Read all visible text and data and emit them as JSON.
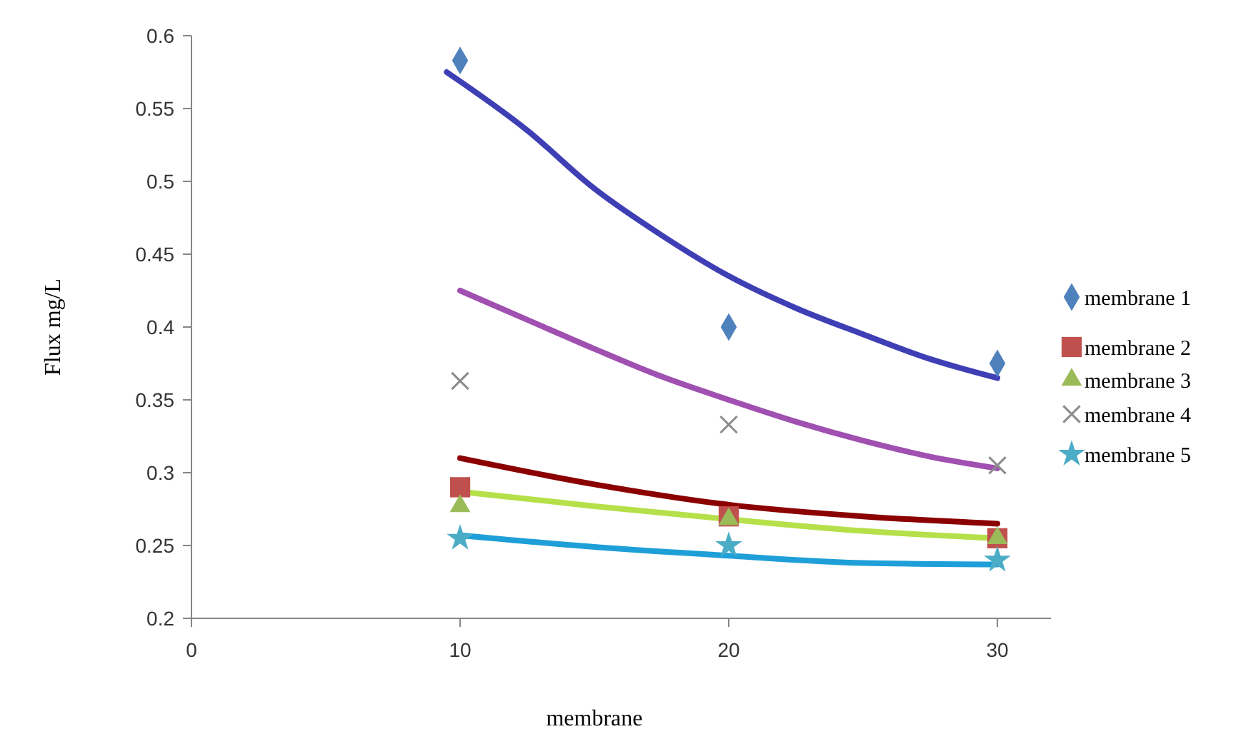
{
  "chart_data": {
    "type": "scatter",
    "xlabel": "membrane",
    "ylabel": "Flux mg/L",
    "xlim": [
      0,
      32
    ],
    "ylim": [
      0.2,
      0.6
    ],
    "xticks": [
      0,
      10,
      20,
      30
    ],
    "yticks": [
      0.2,
      0.25,
      0.3,
      0.35,
      0.4,
      0.45,
      0.5,
      0.55,
      0.6
    ],
    "grid": false,
    "legend": "right",
    "x": [
      10,
      20,
      30
    ],
    "series": [
      {
        "type": "line",
        "color": "#3f3fb5",
        "marker": "none",
        "x": [
          9.5,
          12.5,
          15,
          17.5,
          20,
          22.5,
          25,
          27.5,
          30
        ],
        "values": [
          0.575,
          0.535,
          0.495,
          0.463,
          0.435,
          0.413,
          0.395,
          0.378,
          0.365
        ]
      },
      {
        "type": "line",
        "color": "#a050b0",
        "marker": "none",
        "x": [
          10,
          12.5,
          15,
          17.5,
          20,
          22.5,
          25,
          27.5,
          30
        ],
        "values": [
          0.425,
          0.405,
          0.385,
          0.366,
          0.35,
          0.335,
          0.322,
          0.311,
          0.303
        ]
      },
      {
        "type": "line",
        "color": "#8b0000",
        "marker": "none",
        "x": [
          10,
          15,
          20,
          25,
          30
        ],
        "values": [
          0.31,
          0.292,
          0.278,
          0.27,
          0.265
        ]
      },
      {
        "type": "line",
        "color": "#b5e04a",
        "marker": "none",
        "x": [
          10,
          15,
          20,
          25,
          30
        ],
        "values": [
          0.287,
          0.277,
          0.268,
          0.26,
          0.255
        ]
      },
      {
        "type": "line",
        "color": "#1f9fd8",
        "marker": "none",
        "x": [
          10,
          15,
          20,
          25,
          30
        ],
        "values": [
          0.257,
          0.249,
          0.243,
          0.238,
          0.237
        ]
      },
      {
        "name": "membrane 1",
        "color": "#4f81bd",
        "marker": "diamond",
        "values": [
          0.583,
          0.4,
          0.375
        ]
      },
      {
        "name": "membrane 2",
        "color": "#c0504d",
        "marker": "square",
        "values": [
          0.29,
          0.27,
          0.255
        ]
      },
      {
        "name": "membrane 3",
        "color": "#9bbb59",
        "marker": "triangle",
        "values": [
          0.277,
          0.268,
          0.255
        ]
      },
      {
        "name": "membrane 4",
        "color": "#8c8c8c",
        "marker": "cross",
        "values": [
          0.363,
          0.333,
          0.305
        ]
      },
      {
        "name": "membrane 5",
        "color": "#4bacc6",
        "marker": "star",
        "values": [
          0.255,
          0.25,
          0.24
        ]
      }
    ]
  }
}
